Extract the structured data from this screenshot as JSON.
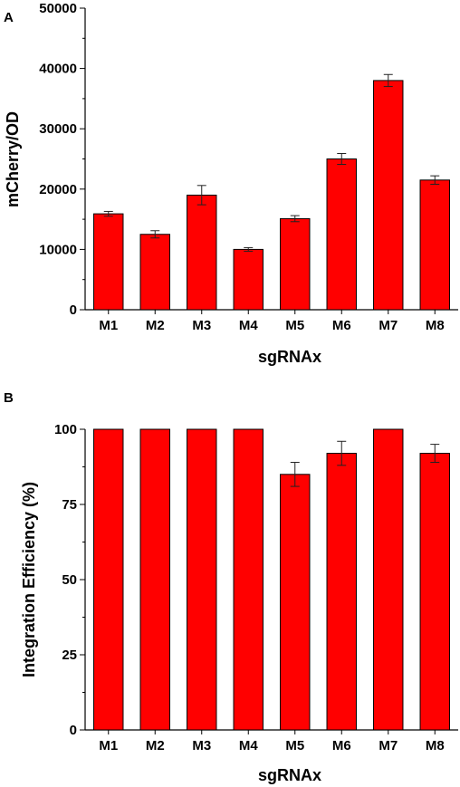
{
  "chart_data": [
    {
      "type": "bar",
      "panel_label": "A",
      "categories": [
        "M1",
        "M2",
        "M3",
        "M4",
        "M5",
        "M6",
        "M7",
        "M8"
      ],
      "values": [
        15900,
        12500,
        19000,
        10000,
        15100,
        25000,
        38000,
        21500
      ],
      "errors": [
        400,
        600,
        1600,
        300,
        500,
        900,
        1000,
        700
      ],
      "xlabel": "sgRNAx",
      "ylabel": "mCherry/OD",
      "ylim": [
        0,
        50000
      ],
      "yticks": [
        "0",
        "10000",
        "20000",
        "30000",
        "40000",
        "50000"
      ],
      "bar_color": "#ff0000",
      "grid": false
    },
    {
      "type": "bar",
      "panel_label": "B",
      "categories": [
        "M1",
        "M2",
        "M3",
        "M4",
        "M5",
        "M6",
        "M7",
        "M8"
      ],
      "values": [
        100,
        100,
        100,
        100,
        85,
        92,
        100,
        92
      ],
      "errors": [
        0,
        0,
        0,
        0,
        4,
        4,
        0,
        3
      ],
      "xlabel": "sgRNAx",
      "ylabel": "Integration Efficiency (%)",
      "ylim": [
        0,
        100
      ],
      "yticks": [
        "0",
        "25",
        "50",
        "75",
        "100"
      ],
      "bar_color": "#ff0000",
      "grid": false
    }
  ]
}
